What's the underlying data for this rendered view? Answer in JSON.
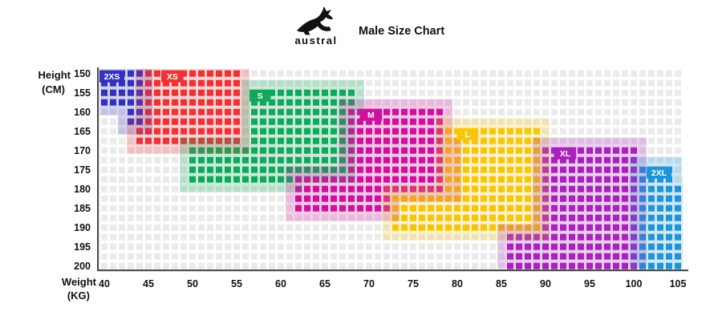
{
  "header": {
    "brand": "austral",
    "title": "Male Size Chart"
  },
  "y_axis": {
    "label_line1": "Height",
    "label_line2": "(CM)",
    "ticks": [
      150,
      155,
      160,
      165,
      170,
      175,
      180,
      185,
      190,
      195,
      200
    ]
  },
  "x_axis": {
    "label_line1": "Weight",
    "label_line2": "(KG)",
    "ticks": [
      40,
      45,
      50,
      55,
      60,
      65,
      70,
      75,
      80,
      85,
      90,
      95,
      100,
      105
    ]
  },
  "chart_data": {
    "type": "heatmap",
    "title": "Male Size Chart",
    "xlabel": "Weight (KG)",
    "ylabel": "Height (CM)",
    "x_range_kg": [
      40,
      105
    ],
    "y_range_cm": [
      150,
      200
    ],
    "kg_per_col": 1,
    "cm_per_row": 2.5,
    "grid_on": true,
    "grid_cell_color": "#ebebeb",
    "overlay_opacity": 0.22,
    "axis_color": "#4d4d4d",
    "label_text_color": "#ffffff",
    "sizes": [
      {
        "name": "2XS",
        "color": "#3431bc",
        "label_box": {
          "kg_from": 40,
          "kg_to": 42,
          "cm": 150
        },
        "steps": [
          {
            "cm_from": 150,
            "cm_to": 157.5,
            "kg_from": 40,
            "kg_to": 44
          },
          {
            "cm_from": 160,
            "cm_to": 162.5,
            "kg_from": 43,
            "kg_to": 44
          }
        ]
      },
      {
        "name": "XS",
        "color": "#ee3237",
        "label_box": {
          "kg_from": 47,
          "kg_to": 48.7,
          "cm": 150
        },
        "steps": [
          {
            "cm_from": 150,
            "cm_to": 162.5,
            "kg_from": 45,
            "kg_to": 55
          },
          {
            "cm_from": 165,
            "cm_to": 167.5,
            "kg_from": 44,
            "kg_to": 55
          }
        ]
      },
      {
        "name": "S",
        "color": "#10a95c",
        "label_box": {
          "kg_from": 57,
          "kg_to": 58.6,
          "cm": 155
        },
        "steps": [
          {
            "cm_from": 155,
            "cm_to": 157.5,
            "kg_from": 57,
            "kg_to": 68
          },
          {
            "cm_from": 160,
            "cm_to": 167.5,
            "kg_from": 57,
            "kg_to": 67
          },
          {
            "cm_from": 170,
            "cm_to": 175,
            "kg_from": 50,
            "kg_to": 67
          },
          {
            "cm_from": 177.5,
            "cm_to": 177.5,
            "kg_from": 50,
            "kg_to": 61
          }
        ]
      },
      {
        "name": "M",
        "color": "#d0109c",
        "label_box": {
          "kg_from": 69.5,
          "kg_to": 71.2,
          "cm": 160
        },
        "steps": [
          {
            "cm_from": 160,
            "cm_to": 167.5,
            "kg_from": 68,
            "kg_to": 78
          },
          {
            "cm_from": 170,
            "cm_to": 175,
            "kg_from": 68,
            "kg_to": 79
          },
          {
            "cm_from": 177.5,
            "cm_to": 180,
            "kg_from": 62,
            "kg_to": 79
          },
          {
            "cm_from": 182.5,
            "cm_to": 185,
            "kg_from": 62,
            "kg_to": 72
          }
        ]
      },
      {
        "name": "L",
        "color": "#f7c60b",
        "label_box": {
          "kg_from": 80.5,
          "kg_to": 82.1,
          "cm": 165
        },
        "steps": [
          {
            "cm_from": 165,
            "cm_to": 180,
            "kg_from": 79,
            "kg_to": 89
          },
          {
            "cm_from": 182.5,
            "cm_to": 190,
            "kg_from": 73,
            "kg_to": 89
          }
        ]
      },
      {
        "name": "XL",
        "color": "#a822bb",
        "label_box": {
          "kg_from": 91.5,
          "kg_to": 93.2,
          "cm": 170
        },
        "steps": [
          {
            "cm_from": 170,
            "cm_to": 190,
            "kg_from": 90,
            "kg_to": 100
          },
          {
            "cm_from": 192.5,
            "cm_to": 200,
            "kg_from": 86,
            "kg_to": 100
          }
        ]
      },
      {
        "name": "2XL",
        "color": "#2094d8",
        "label_box": {
          "kg_from": 102,
          "kg_to": 104,
          "cm": 175
        },
        "steps": [
          {
            "cm_from": 175,
            "cm_to": 177.5,
            "kg_from": 101,
            "kg_to": 104
          },
          {
            "cm_from": 180,
            "cm_to": 200,
            "kg_from": 101,
            "kg_to": 105
          }
        ]
      }
    ]
  }
}
